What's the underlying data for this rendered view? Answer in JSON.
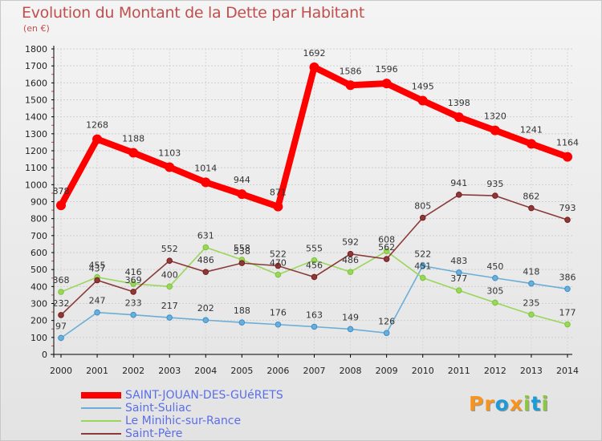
{
  "title": "Evolution du Montant de la Dette par Habitant",
  "subtitle": "(en €)",
  "logo": {
    "text": [
      "P",
      "r",
      "o",
      "x",
      "i",
      "t",
      "i"
    ],
    "colors": [
      "#f7941d",
      "#f7941d",
      "#1e9bd7",
      "#f7941d",
      "#8dc63f",
      "#1e9bd7",
      "#8dc63f"
    ]
  },
  "chart_data": {
    "type": "line",
    "x": [
      "2000",
      "2001",
      "2002",
      "2003",
      "2004",
      "2005",
      "2006",
      "2007",
      "2008",
      "2009",
      "2010",
      "2011",
      "2012",
      "2013",
      "2014"
    ],
    "ylim": [
      0,
      1800
    ],
    "yticks": [
      0,
      100,
      200,
      300,
      400,
      500,
      600,
      700,
      800,
      900,
      1000,
      1100,
      1200,
      1300,
      1400,
      1500,
      1600,
      1700,
      1800
    ],
    "grid": true,
    "legend_position": "bottom-left",
    "series": [
      {
        "name": "SAINT-JOUAN-DES-GUéRETS",
        "color": "#ff0000",
        "thick": true,
        "values": [
          878,
          1268,
          1188,
          1103,
          1014,
          944,
          871,
          1692,
          1586,
          1596,
          1495,
          1398,
          1320,
          1241,
          1164
        ],
        "labels": [
          "878",
          "1268",
          "1188",
          "1103",
          "1014",
          "944",
          "871",
          "1692",
          "1586",
          "1596",
          "1495",
          "1398",
          "1320",
          "1241",
          "1164"
        ],
        "segments": [
          [
            0,
            6
          ],
          [
            6,
            14
          ]
        ]
      },
      {
        "name": "Saint-Suliac",
        "color": "#6baed6",
        "marker": "#3a8fd0",
        "values": [
          97,
          247,
          233,
          217,
          202,
          188,
          176,
          163,
          149,
          126,
          522,
          483,
          450,
          418,
          386
        ]
      },
      {
        "name": "Le Minihic-sur-Rance",
        "color": "#9ad65a",
        "marker": "#7cc43a",
        "values": [
          368,
          455,
          416,
          400,
          631,
          558,
          470,
          555,
          486,
          608,
          451,
          377,
          305,
          235,
          177
        ]
      },
      {
        "name": "Saint-Père",
        "color": "#8b3a3a",
        "marker": "#7a1c1c",
        "values": [
          232,
          437,
          369,
          552,
          486,
          538,
          522,
          456,
          592,
          562,
          805,
          941,
          935,
          862,
          793
        ]
      }
    ]
  }
}
